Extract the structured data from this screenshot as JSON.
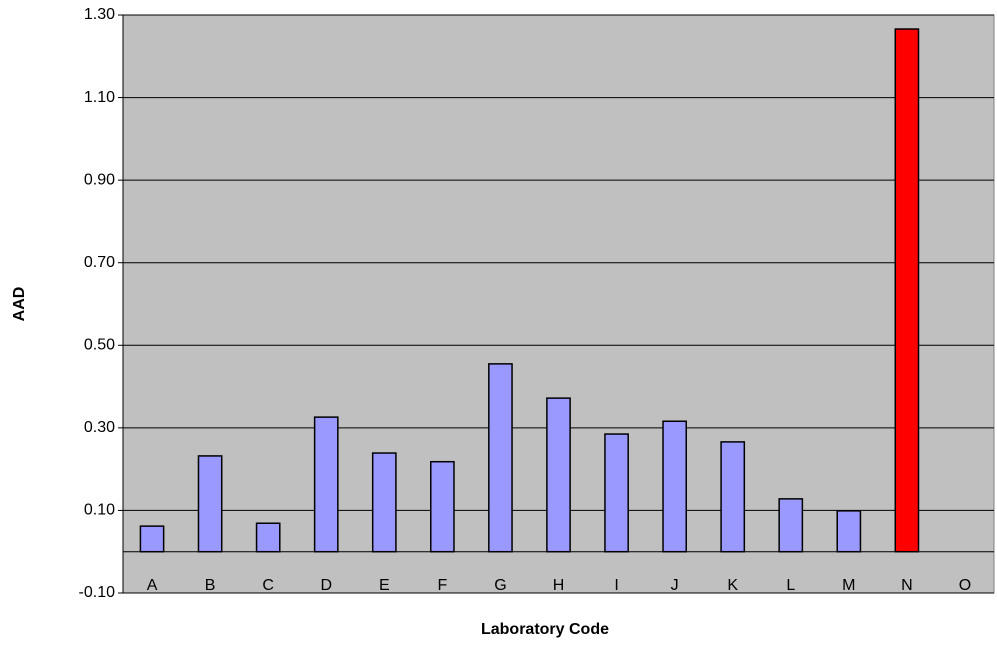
{
  "chart_data": {
    "type": "bar",
    "x_label": "Laboratory Code",
    "y_label": "AAD",
    "categories": [
      "A",
      "B",
      "C",
      "D",
      "E",
      "F",
      "G",
      "H",
      "I",
      "J",
      "K",
      "L",
      "M",
      "N",
      "O"
    ],
    "values": [
      0.062,
      0.232,
      0.069,
      0.326,
      0.239,
      0.218,
      0.455,
      0.372,
      0.285,
      0.316,
      0.266,
      0.128,
      0.099,
      1.266,
      null
    ],
    "colors": [
      "#9999ff",
      "#9999ff",
      "#9999ff",
      "#9999ff",
      "#9999ff",
      "#9999ff",
      "#9999ff",
      "#9999ff",
      "#9999ff",
      "#9999ff",
      "#9999ff",
      "#9999ff",
      "#9999ff",
      "#ff0000",
      "#9999ff"
    ],
    "ylim": [
      -0.1,
      1.3
    ],
    "yticks": [
      {
        "value": -0.1,
        "label": "-0.10"
      },
      {
        "value": 0.1,
        "label": "0.10"
      },
      {
        "value": 0.3,
        "label": "0.30"
      },
      {
        "value": 0.5,
        "label": "0.50"
      },
      {
        "value": 0.7,
        "label": "0.70"
      },
      {
        "value": 0.9,
        "label": "0.90"
      },
      {
        "value": 1.1,
        "label": "1.10"
      },
      {
        "value": 1.3,
        "label": "1.30"
      }
    ],
    "grid": true,
    "background": "#c0c0c0"
  }
}
